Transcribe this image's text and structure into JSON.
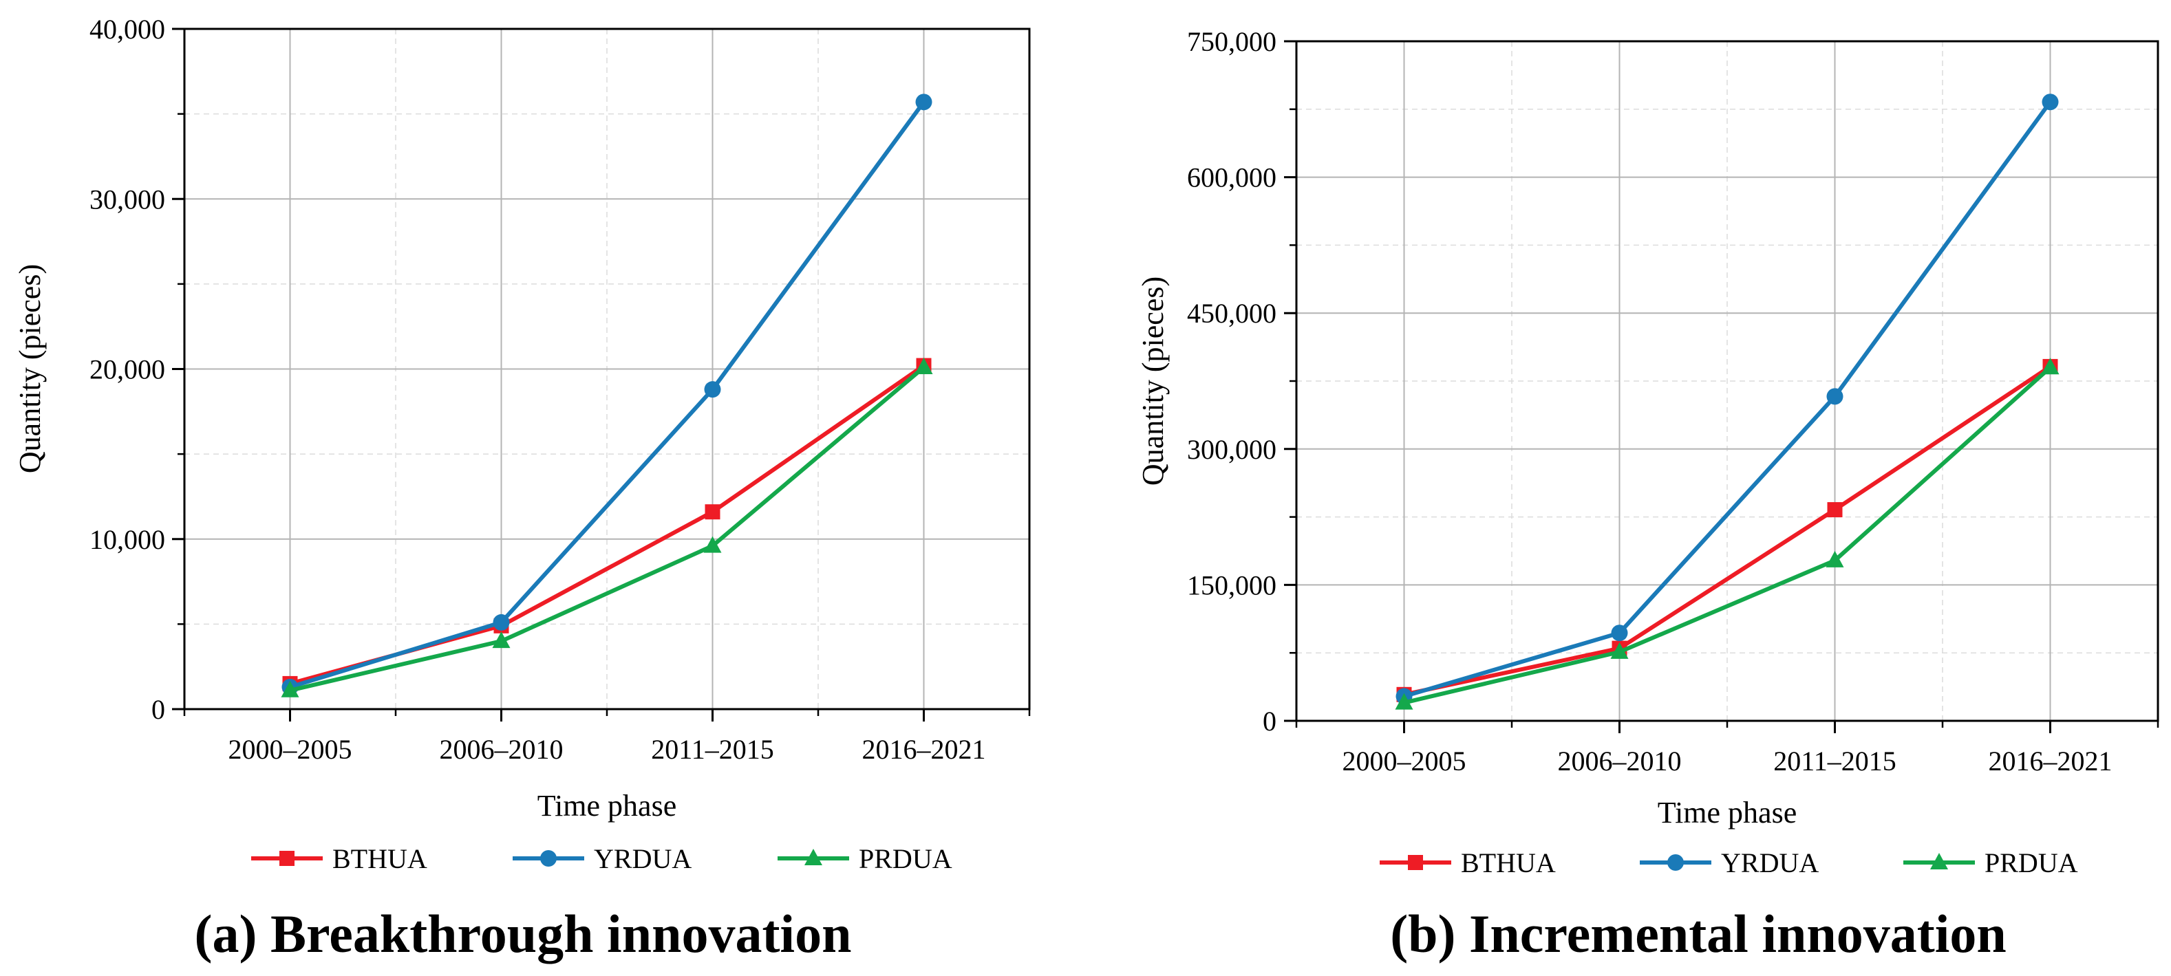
{
  "chart_data": [
    {
      "type": "line",
      "caption": "(a) Breakthrough innovation",
      "xlabel": "Time phase",
      "ylabel": "Quantity (pieces)",
      "categories": [
        "2000–2005",
        "2006–2010",
        "2011–2015",
        "2016–2021"
      ],
      "ylim": [
        0,
        40000
      ],
      "yticks": [
        0,
        10000,
        20000,
        30000,
        40000
      ],
      "ytick_labels": [
        "0",
        "10,000",
        "20,000",
        "30,000",
        "40,000"
      ],
      "grid": true,
      "legend_position": "bottom",
      "series": [
        {
          "name": "BTHUA",
          "marker": "square",
          "color": "#ee1c25",
          "values": [
            1500,
            4900,
            11600,
            20200
          ]
        },
        {
          "name": "YRDUA",
          "marker": "circle",
          "color": "#1a7ab8",
          "values": [
            1300,
            5100,
            18800,
            35700
          ]
        },
        {
          "name": "PRDUA",
          "marker": "triangle",
          "color": "#14a84b",
          "values": [
            1100,
            4000,
            9600,
            20100
          ]
        }
      ]
    },
    {
      "type": "line",
      "caption": "(b) Incremental innovation",
      "xlabel": "Time phase",
      "ylabel": "Quantity (pieces)",
      "categories": [
        "2000–2005",
        "2006–2010",
        "2011–2015",
        "2016–2021"
      ],
      "ylim": [
        0,
        750000
      ],
      "yticks": [
        0,
        150000,
        300000,
        450000,
        600000,
        750000
      ],
      "ytick_labels": [
        "0",
        "150,000",
        "300,000",
        "450,000",
        "600,000",
        "750,000"
      ],
      "grid": true,
      "legend_position": "bottom",
      "series": [
        {
          "name": "BTHUA",
          "marker": "square",
          "color": "#ee1c25",
          "values": [
            29000,
            80000,
            233000,
            391000
          ]
        },
        {
          "name": "YRDUA",
          "marker": "circle",
          "color": "#1a7ab8",
          "values": [
            27000,
            97000,
            358000,
            683000
          ]
        },
        {
          "name": "PRDUA",
          "marker": "triangle",
          "color": "#14a84b",
          "values": [
            20000,
            76000,
            177000,
            390000
          ]
        }
      ]
    }
  ]
}
